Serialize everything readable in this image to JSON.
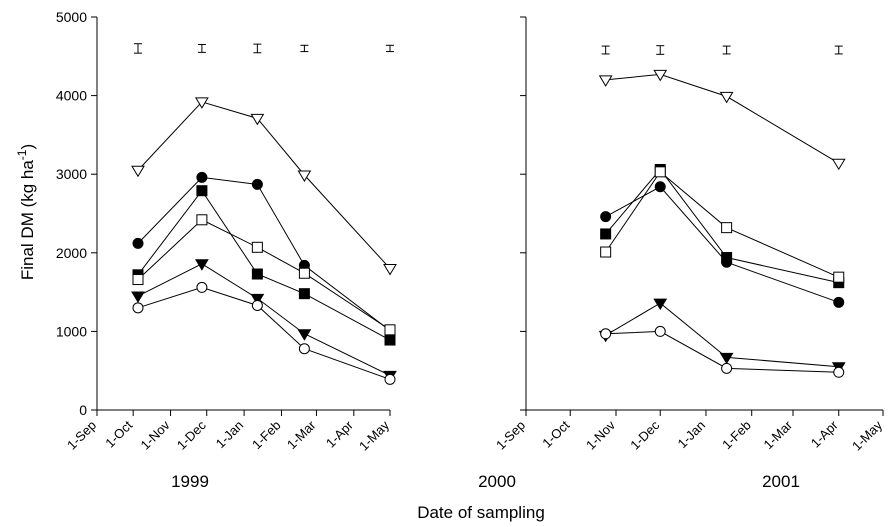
{
  "chart_data": [
    {
      "type": "line",
      "panel": "left",
      "xlabel": "1999",
      "xlabel_right": "2000",
      "ylabel": "Final DM (kg ha",
      "ylabel_sup": "-1",
      "ylabel_close": ")",
      "ylim": [
        0,
        5000
      ],
      "yticks": [
        0,
        1000,
        2000,
        3000,
        4000,
        5000
      ],
      "xticks": [
        "1-Sep",
        "1-Oct",
        "1-Nov",
        "1-Dec",
        "1-Jan",
        "1-Feb",
        "1-Mar",
        "1-Apr",
        "1-May"
      ],
      "x": [
        "1999-10-05",
        "1999-11-27",
        "2000-01-12",
        "2000-02-20",
        "2000-05-01"
      ],
      "series": [
        {
          "marker": "triangle-down-open",
          "values": [
            3050,
            3920,
            3710,
            2990,
            1800
          ]
        },
        {
          "marker": "circle-filled",
          "values": [
            2120,
            2960,
            2870,
            1840,
            1010
          ]
        },
        {
          "marker": "square-filled",
          "values": [
            1720,
            2790,
            1730,
            1480,
            890
          ]
        },
        {
          "marker": "square-open",
          "values": [
            1660,
            2420,
            2070,
            1740,
            1020
          ]
        },
        {
          "marker": "triangle-down-filled",
          "values": [
            1450,
            1860,
            1420,
            970,
            440
          ]
        },
        {
          "marker": "circle-open",
          "values": [
            1300,
            1560,
            1330,
            780,
            390
          ]
        }
      ],
      "error_bars": {
        "y": 4600,
        "half_length": [
          60,
          50,
          55,
          40,
          40
        ]
      }
    },
    {
      "type": "line",
      "panel": "right",
      "xlabel": "2001",
      "ylim": [
        0,
        5000
      ],
      "xticks": [
        "1-Sep",
        "1-Oct",
        "1-Nov",
        "1-Dec",
        "1-Jan",
        "1-Feb",
        "1-Mar",
        "1-Apr",
        "1-May"
      ],
      "x": [
        "2000-10-25",
        "2000-12-01",
        "2001-01-15",
        "2001-04-01"
      ],
      "series": [
        {
          "marker": "triangle-down-open",
          "values": [
            4200,
            4270,
            3990,
            3140
          ]
        },
        {
          "marker": "circle-filled",
          "values": [
            2460,
            2840,
            1880,
            1370
          ]
        },
        {
          "marker": "square-filled",
          "values": [
            2240,
            3060,
            1940,
            1620
          ]
        },
        {
          "marker": "square-open",
          "values": [
            2010,
            3030,
            2320,
            1690
          ]
        },
        {
          "marker": "triangle-down-filled",
          "values": [
            950,
            1360,
            670,
            550
          ]
        },
        {
          "marker": "circle-open",
          "values": [
            970,
            1000,
            530,
            480
          ]
        }
      ],
      "error_bars": {
        "y": 4580,
        "half_length": [
          50,
          55,
          50,
          50
        ]
      }
    }
  ],
  "figure_xlabel": "Date of sampling",
  "colors": {
    "ink": "#000000",
    "background": "#ffffff"
  }
}
